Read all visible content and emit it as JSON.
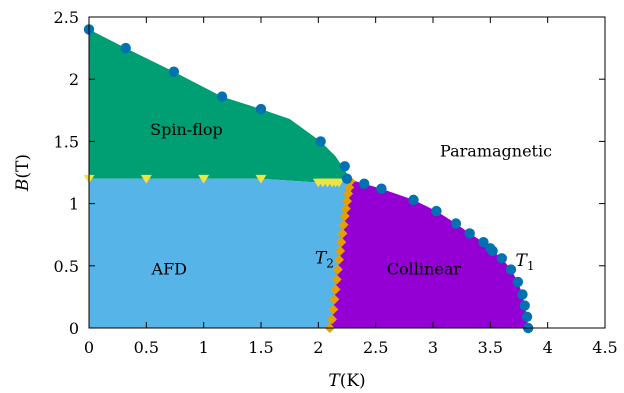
{
  "chart_data": {
    "type": "scatter",
    "xlabel_var": "T",
    "xlabel_unit": "(K)",
    "ylabel_var": "B",
    "ylabel_unit": "(T)",
    "xlim": [
      0,
      4.5
    ],
    "ylim": [
      0,
      2.5
    ],
    "xticks": [
      "0",
      "0.5",
      "1",
      "1.5",
      "2",
      "2.5",
      "3",
      "3.5",
      "4",
      "4.5"
    ],
    "yticks": [
      "0",
      "0.5",
      "1",
      "1.5",
      "2",
      "2.5"
    ],
    "grid": false,
    "legend": "none",
    "regions": [
      {
        "label": "Spin-flop",
        "color": "#009e73",
        "label_at": [
          0.85,
          1.55
        ]
      },
      {
        "label": "AFD",
        "color": "#56b4e9",
        "label_at": [
          0.7,
          0.43
        ]
      },
      {
        "label": "Collinear",
        "color": "#9400d3",
        "label_at": [
          2.92,
          0.43
        ]
      },
      {
        "label": "Paramagnetic",
        "color": "#ffffff",
        "label_at": [
          3.55,
          1.38
        ]
      }
    ],
    "curve_labels": [
      {
        "symbol": "T",
        "sub": "1",
        "at": [
          3.72,
          0.5
        ]
      },
      {
        "symbol": "T",
        "sub": "2",
        "at": [
          1.97,
          0.52
        ]
      }
    ],
    "series": [
      {
        "marker": "circle",
        "color": "#0072b2",
        "x": [
          0.0,
          0.32,
          0.74,
          1.16,
          1.5,
          2.02,
          2.23,
          2.25,
          2.4,
          2.55,
          2.83,
          3.03,
          3.2,
          3.32,
          3.44,
          3.5,
          3.52,
          3.6,
          3.68,
          3.74,
          3.78,
          3.8,
          3.82,
          3.83
        ],
        "y": [
          2.4,
          2.25,
          2.06,
          1.86,
          1.76,
          1.5,
          1.3,
          1.2,
          1.16,
          1.12,
          1.03,
          0.94,
          0.84,
          0.76,
          0.69,
          0.64,
          0.62,
          0.56,
          0.47,
          0.37,
          0.27,
          0.18,
          0.09,
          0.0
        ]
      },
      {
        "marker": "triangle-down",
        "color": "#f0e442",
        "x": [
          0.0,
          0.5,
          1.0,
          1.5,
          2.0,
          2.04,
          2.08,
          2.12,
          2.15,
          2.18
        ],
        "y": [
          1.2,
          1.2,
          1.2,
          1.2,
          1.17,
          1.17,
          1.17,
          1.17,
          1.17,
          1.17
        ]
      },
      {
        "marker": "diamond",
        "color": "#e69f00",
        "x": [
          2.1,
          2.12,
          2.13,
          2.14,
          2.15,
          2.16,
          2.17,
          2.18,
          2.19,
          2.2,
          2.21,
          2.22,
          2.23,
          2.24,
          2.25,
          2.26,
          2.27,
          2.28
        ],
        "y": [
          0.0,
          0.07,
          0.15,
          0.23,
          0.31,
          0.39,
          0.47,
          0.55,
          0.62,
          0.69,
          0.76,
          0.83,
          0.9,
          0.96,
          1.02,
          1.08,
          1.13,
          1.18
        ]
      }
    ]
  }
}
